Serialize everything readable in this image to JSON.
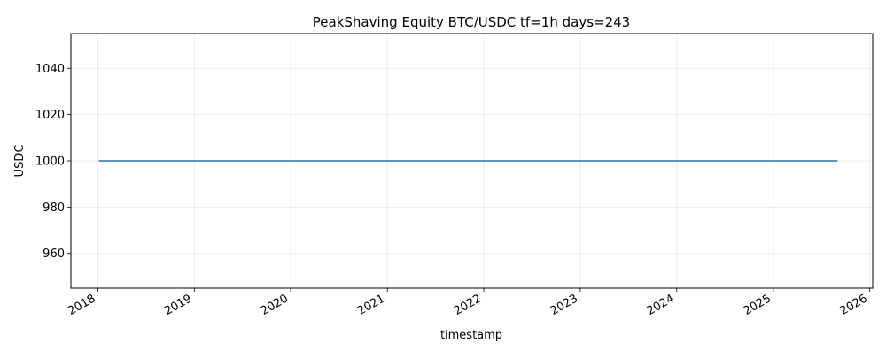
{
  "chart_data": {
    "type": "line",
    "title": "PeakShaving Equity BTC/USDC tf=1h days=243",
    "xlabel": "timestamp",
    "ylabel": "USDC",
    "x_axis_type": "date",
    "xlim": [
      "2017-09-21",
      "2026-01-12"
    ],
    "ylim": [
      945,
      1055
    ],
    "x_ticks": [
      "2018",
      "2019",
      "2020",
      "2021",
      "2022",
      "2023",
      "2024",
      "2025",
      "2026"
    ],
    "y_ticks": [
      960,
      980,
      1000,
      1020,
      1040
    ],
    "grid": true,
    "legend": "none",
    "series": [
      {
        "color": "#1f77b4",
        "points": [
          {
            "x": "2018-01-05",
            "y": 1000
          },
          {
            "x": "2025-09-01",
            "y": 1000
          }
        ]
      }
    ]
  }
}
